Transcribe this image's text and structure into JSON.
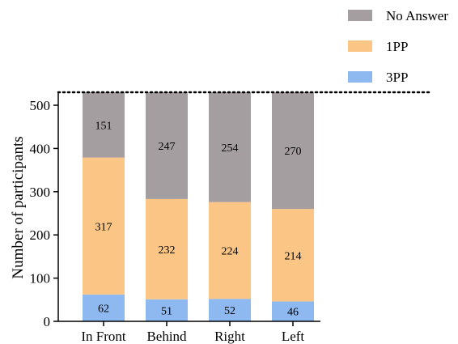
{
  "chart_data": {
    "type": "bar",
    "stacked": true,
    "categories": [
      "In Front",
      "Behind",
      "Right",
      "Left"
    ],
    "series": [
      {
        "name": "3PP",
        "values": [
          62,
          51,
          52,
          46
        ],
        "color": "#8db9f0"
      },
      {
        "name": "1PP",
        "values": [
          317,
          232,
          224,
          214
        ],
        "color": "#fbc685"
      },
      {
        "name": "No Answer",
        "values": [
          151,
          247,
          254,
          270
        ],
        "color": "#a49ea1"
      }
    ],
    "legend_order": [
      "No Answer",
      "1PP",
      "3PP"
    ],
    "legend_position": "top-right",
    "ylabel": "Number of participants",
    "xlabel": "",
    "title": "",
    "ylim": [
      0,
      530
    ],
    "yticks": [
      0,
      100,
      200,
      300,
      400,
      500
    ],
    "reference_line": 530,
    "grid": false
  }
}
